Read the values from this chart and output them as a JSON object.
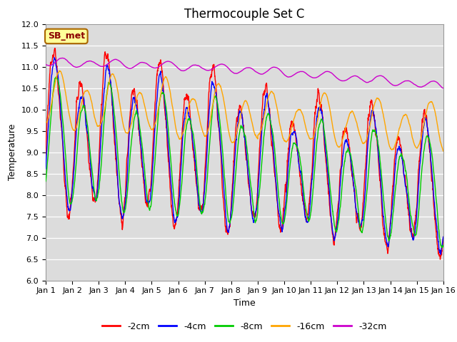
{
  "title": "Thermocouple Set C",
  "xlabel": "Time",
  "ylabel": "Temperature",
  "ylim": [
    6.0,
    12.0
  ],
  "xlim": [
    0,
    15
  ],
  "xtick_labels": [
    "Jan 1",
    "Jan 2",
    "Jan 3",
    "Jan 4",
    "Jan 5",
    "Jan 6",
    "Jan 7",
    "Jan 8",
    "Jan 9",
    "Jan 10",
    "Jan 11",
    "Jan 12",
    "Jan 13",
    "Jan 14",
    "Jan 15",
    "Jan 16"
  ],
  "ytick_vals": [
    6.0,
    6.5,
    7.0,
    7.5,
    8.0,
    8.5,
    9.0,
    9.5,
    10.0,
    10.5,
    11.0,
    11.5,
    12.0
  ],
  "line_colors": [
    "#ff0000",
    "#0000ff",
    "#00cc00",
    "#ffa500",
    "#cc00cc"
  ],
  "line_labels": [
    "-2cm",
    "-4cm",
    "-8cm",
    "-16cm",
    "-32cm"
  ],
  "legend_label": "SB_met",
  "legend_bg": "#ffff99",
  "legend_border": "#aa6600",
  "plot_bg": "#dcdcdc",
  "title_fontsize": 12,
  "axis_fontsize": 9,
  "tick_fontsize": 8
}
